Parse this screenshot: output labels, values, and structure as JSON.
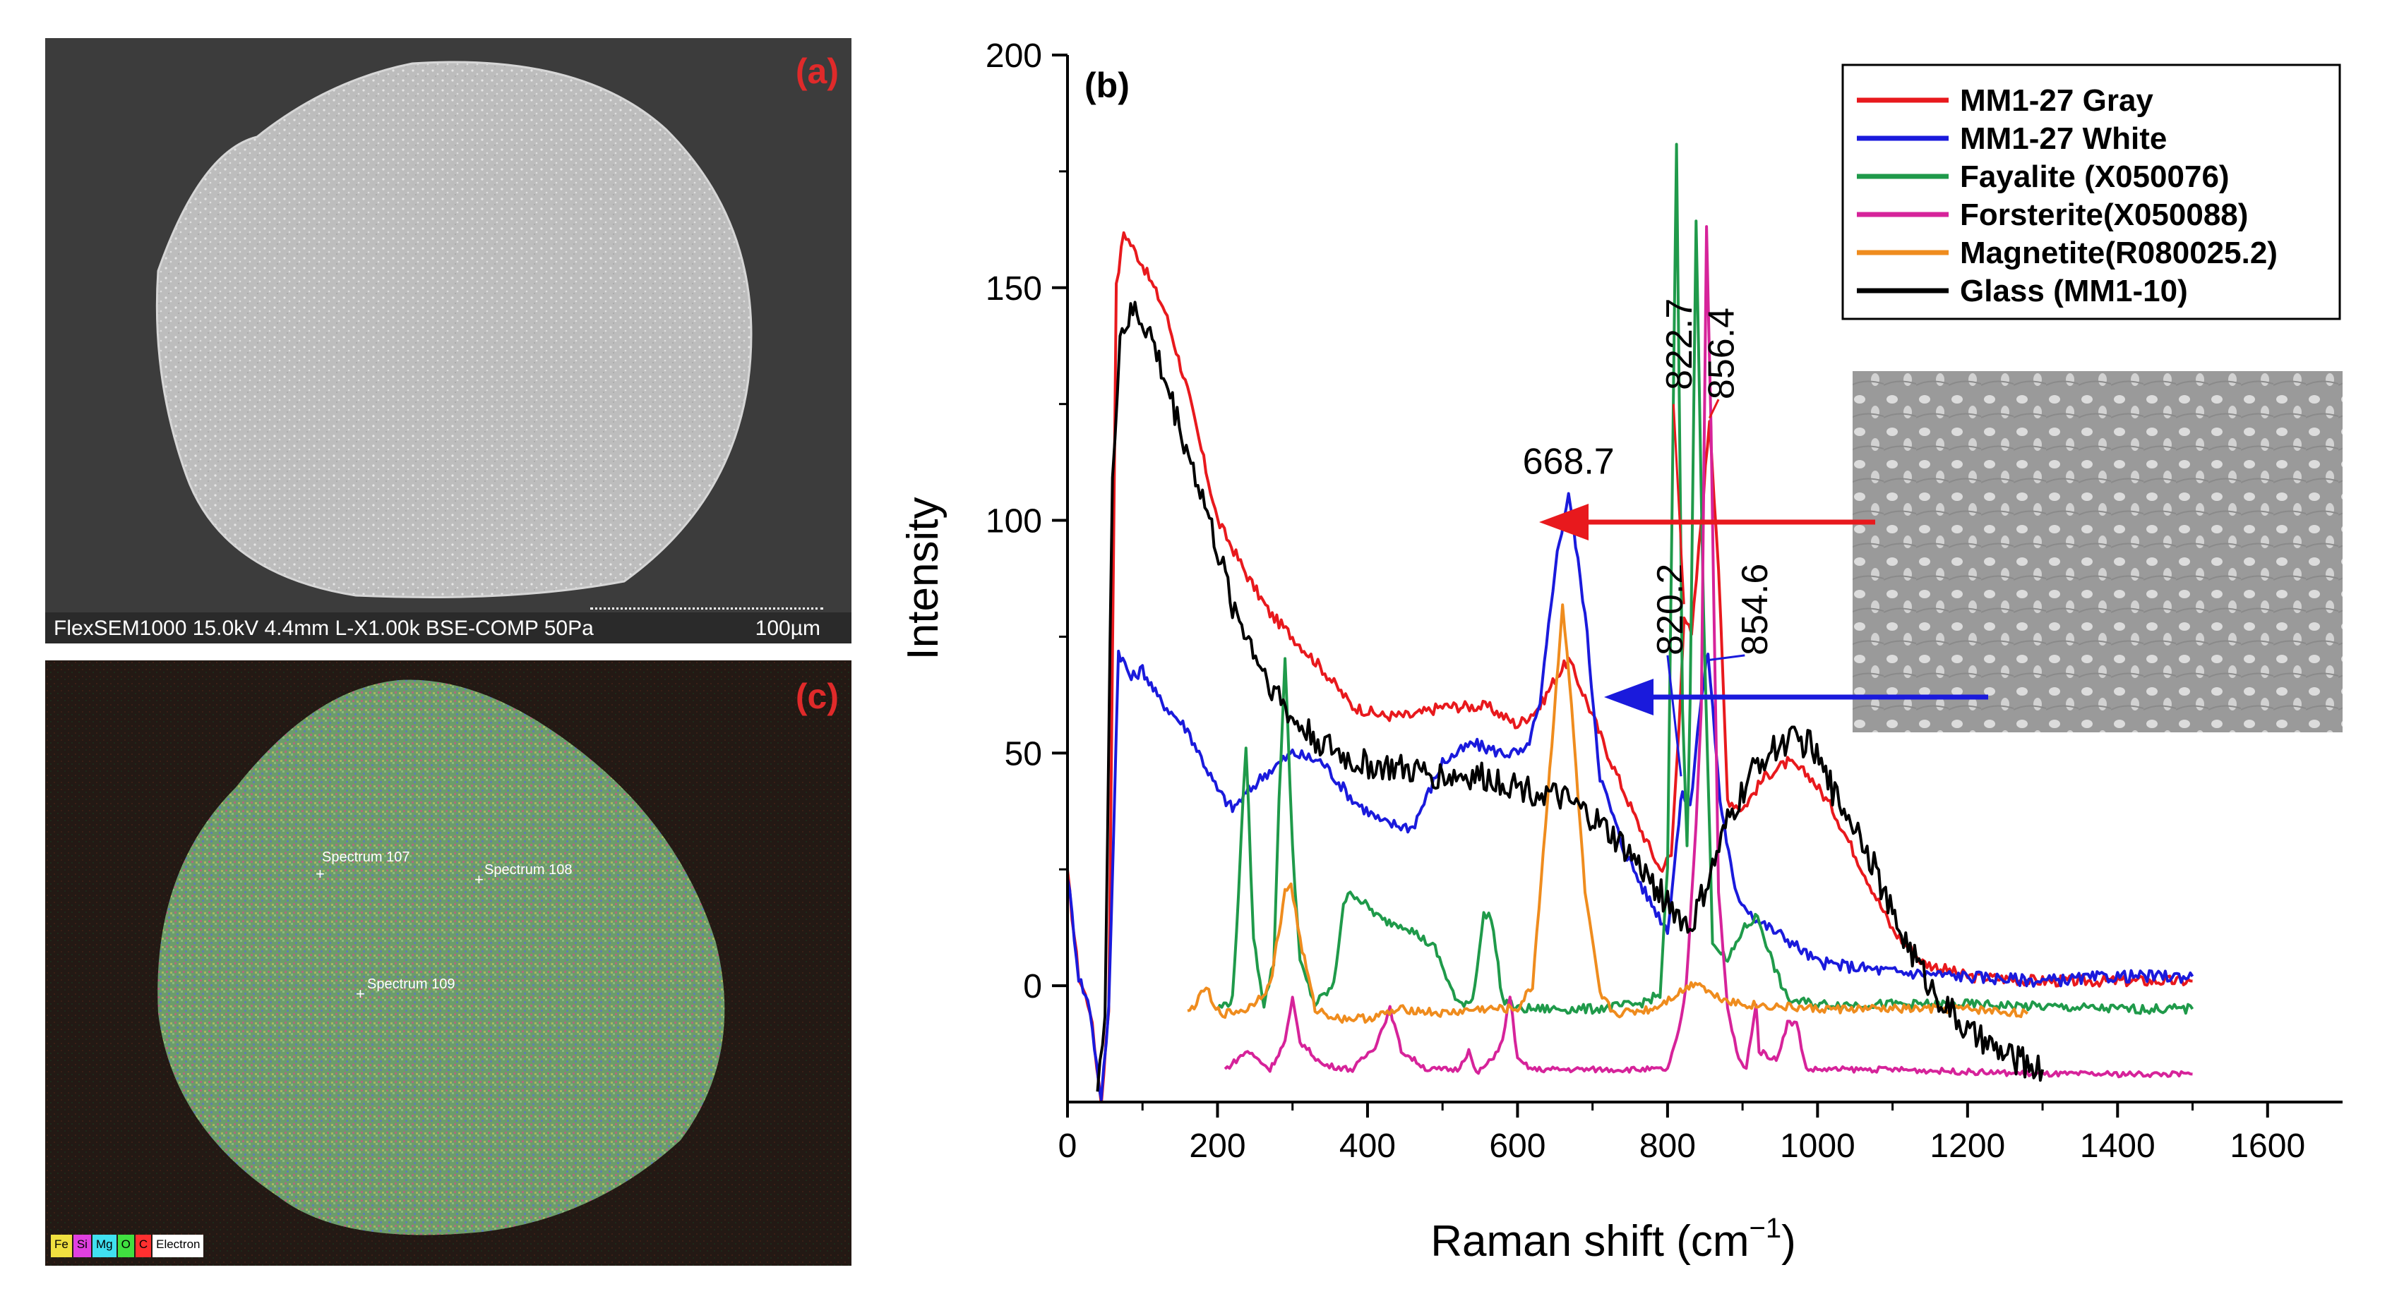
{
  "panel_a": {
    "letter": "(a)",
    "caption": "FlexSEM1000 15.0kV 4.4mm L-X1.00k BSE-COMP 50Pa",
    "scale_label": "100µm"
  },
  "panel_c": {
    "letter": "(c)",
    "spectra": [
      "Spectrum 107",
      "Spectrum 108",
      "Spectrum 109"
    ],
    "elements": [
      {
        "label": "Fe",
        "color": "#f0e040"
      },
      {
        "label": "Si",
        "color": "#e040e0"
      },
      {
        "label": "Mg",
        "color": "#40e0f0"
      },
      {
        "label": "O",
        "color": "#40e040"
      },
      {
        "label": "C",
        "color": "#ff3030"
      },
      {
        "label": "Electron",
        "color": "#ffffff"
      }
    ]
  },
  "chart_data": {
    "type": "line",
    "panel_letter": "(b)",
    "xlabel": "Raman shift (cm",
    "xlabel_sup": "−1",
    "xlabel_end": ")",
    "ylabel": "Intensity",
    "xlim": [
      0,
      1700
    ],
    "ylim": [
      -25,
      200
    ],
    "x_ticks": [
      "0",
      "200",
      "400",
      "600",
      "800",
      "1000",
      "1200",
      "1400",
      "1600"
    ],
    "y_ticks": [
      "0",
      "50",
      "100",
      "150",
      "200"
    ],
    "legend": [
      {
        "name": "MM1-27 Gray",
        "color": "#e8191d"
      },
      {
        "name": "MM1-27 White",
        "color": "#1a1adc"
      },
      {
        "name": "Fayalite (X050076)",
        "color": "#1f9a4a"
      },
      {
        "name": "Forsterite(X050088)",
        "color": "#d6239a"
      },
      {
        "name": "Magnetite(R080025.2)",
        "color": "#ef8c1e"
      },
      {
        "name": "Glass (MM1-10)",
        "color": "#000000"
      }
    ],
    "series": [
      {
        "name": "MM1-27 Gray",
        "color": "#e8191d",
        "noise": 1.2,
        "points": [
          [
            0,
            24
          ],
          [
            15,
            2
          ],
          [
            30,
            -5
          ],
          [
            45,
            -25
          ],
          [
            55,
            -5
          ],
          [
            65,
            150
          ],
          [
            75,
            162
          ],
          [
            100,
            155
          ],
          [
            130,
            145
          ],
          [
            160,
            128
          ],
          [
            200,
            100
          ],
          [
            240,
            88
          ],
          [
            270,
            80
          ],
          [
            300,
            75
          ],
          [
            340,
            68
          ],
          [
            380,
            60
          ],
          [
            420,
            58
          ],
          [
            460,
            58
          ],
          [
            500,
            60
          ],
          [
            560,
            60
          ],
          [
            600,
            56
          ],
          [
            630,
            60
          ],
          [
            650,
            66
          ],
          [
            668,
            70
          ],
          [
            690,
            62
          ],
          [
            720,
            50
          ],
          [
            760,
            35
          ],
          [
            790,
            25
          ],
          [
            805,
            28
          ],
          [
            815,
            55
          ],
          [
            822,
            80
          ],
          [
            832,
            75
          ],
          [
            845,
            100
          ],
          [
            856,
            122
          ],
          [
            868,
            90
          ],
          [
            880,
            40
          ],
          [
            900,
            38
          ],
          [
            930,
            45
          ],
          [
            960,
            48
          ],
          [
            990,
            45
          ],
          [
            1020,
            38
          ],
          [
            1060,
            25
          ],
          [
            1100,
            12
          ],
          [
            1140,
            5
          ],
          [
            1200,
            2
          ],
          [
            1300,
            1
          ],
          [
            1400,
            1
          ],
          [
            1500,
            1
          ]
        ]
      },
      {
        "name": "MM1-27 White",
        "color": "#1a1adc",
        "noise": 1.3,
        "points": [
          [
            0,
            24
          ],
          [
            15,
            2
          ],
          [
            30,
            -5
          ],
          [
            45,
            -25
          ],
          [
            55,
            -5
          ],
          [
            68,
            72
          ],
          [
            85,
            66
          ],
          [
            100,
            68
          ],
          [
            120,
            62
          ],
          [
            160,
            55
          ],
          [
            200,
            42
          ],
          [
            220,
            38
          ],
          [
            260,
            45
          ],
          [
            300,
            50
          ],
          [
            340,
            48
          ],
          [
            380,
            40
          ],
          [
            420,
            35
          ],
          [
            460,
            34
          ],
          [
            500,
            48
          ],
          [
            540,
            52
          ],
          [
            580,
            50
          ],
          [
            610,
            50
          ],
          [
            630,
            60
          ],
          [
            650,
            90
          ],
          [
            668,
            106
          ],
          [
            690,
            80
          ],
          [
            710,
            45
          ],
          [
            740,
            30
          ],
          [
            770,
            20
          ],
          [
            800,
            12
          ],
          [
            815,
            35
          ],
          [
            820,
            42
          ],
          [
            830,
            38
          ],
          [
            840,
            55
          ],
          [
            854,
            72
          ],
          [
            870,
            40
          ],
          [
            890,
            20
          ],
          [
            920,
            14
          ],
          [
            960,
            10
          ],
          [
            1000,
            5
          ],
          [
            1100,
            3
          ],
          [
            1200,
            2
          ],
          [
            1300,
            1
          ],
          [
            1400,
            2
          ],
          [
            1500,
            2
          ]
        ]
      },
      {
        "name": "Fayalite (X050076)",
        "color": "#1f9a4a",
        "noise": 1.0,
        "points": [
          [
            200,
            -5
          ],
          [
            220,
            -3
          ],
          [
            228,
            20
          ],
          [
            238,
            52
          ],
          [
            248,
            10
          ],
          [
            262,
            -4
          ],
          [
            275,
            5
          ],
          [
            282,
            40
          ],
          [
            290,
            70
          ],
          [
            300,
            30
          ],
          [
            310,
            5
          ],
          [
            330,
            -4
          ],
          [
            355,
            0
          ],
          [
            368,
            18
          ],
          [
            380,
            20
          ],
          [
            400,
            17
          ],
          [
            420,
            14
          ],
          [
            450,
            13
          ],
          [
            490,
            8
          ],
          [
            520,
            -4
          ],
          [
            540,
            -3
          ],
          [
            555,
            15
          ],
          [
            565,
            15
          ],
          [
            580,
            -3
          ],
          [
            600,
            -5
          ],
          [
            700,
            -5
          ],
          [
            760,
            -4
          ],
          [
            790,
            -2
          ],
          [
            800,
            25
          ],
          [
            812,
            180
          ],
          [
            820,
            60
          ],
          [
            826,
            30
          ],
          [
            830,
            60
          ],
          [
            838,
            165
          ],
          [
            848,
            80
          ],
          [
            860,
            10
          ],
          [
            880,
            5
          ],
          [
            900,
            12
          ],
          [
            920,
            15
          ],
          [
            940,
            5
          ],
          [
            960,
            -3
          ],
          [
            1000,
            -4
          ],
          [
            1200,
            -4
          ],
          [
            1400,
            -5
          ],
          [
            1500,
            -5
          ]
        ]
      },
      {
        "name": "Forsterite(X050088)",
        "color": "#d6239a",
        "noise": 0.6,
        "points": [
          [
            210,
            -18
          ],
          [
            240,
            -14
          ],
          [
            270,
            -18
          ],
          [
            290,
            -12
          ],
          [
            300,
            -3
          ],
          [
            310,
            -12
          ],
          [
            340,
            -17
          ],
          [
            380,
            -18
          ],
          [
            410,
            -13
          ],
          [
            430,
            -5
          ],
          [
            445,
            -14
          ],
          [
            480,
            -18
          ],
          [
            520,
            -18
          ],
          [
            535,
            -14
          ],
          [
            545,
            -19
          ],
          [
            565,
            -16
          ],
          [
            580,
            -12
          ],
          [
            590,
            -2
          ],
          [
            600,
            -16
          ],
          [
            620,
            -18
          ],
          [
            800,
            -18
          ],
          [
            815,
            -10
          ],
          [
            825,
            0
          ],
          [
            838,
            35
          ],
          [
            845,
            60
          ],
          [
            852,
            163
          ],
          [
            858,
            120
          ],
          [
            868,
            20
          ],
          [
            880,
            -5
          ],
          [
            895,
            -16
          ],
          [
            905,
            -18
          ],
          [
            912,
            -10
          ],
          [
            918,
            -4
          ],
          [
            922,
            -14
          ],
          [
            945,
            -16
          ],
          [
            960,
            -8
          ],
          [
            972,
            -8
          ],
          [
            985,
            -18
          ],
          [
            1100,
            -18
          ],
          [
            1300,
            -19
          ],
          [
            1500,
            -19
          ]
        ]
      },
      {
        "name": "Magnetite(R080025.2)",
        "color": "#ef8c1e",
        "noise": 0.9,
        "points": [
          [
            160,
            -6
          ],
          [
            175,
            -3
          ],
          [
            185,
            0
          ],
          [
            195,
            -5
          ],
          [
            210,
            -6
          ],
          [
            240,
            -5
          ],
          [
            270,
            0
          ],
          [
            290,
            20
          ],
          [
            298,
            22
          ],
          [
            310,
            10
          ],
          [
            330,
            -5
          ],
          [
            360,
            -7
          ],
          [
            400,
            -7
          ],
          [
            450,
            -5
          ],
          [
            500,
            -6
          ],
          [
            550,
            -5
          ],
          [
            600,
            -5
          ],
          [
            620,
            0
          ],
          [
            640,
            40
          ],
          [
            660,
            82
          ],
          [
            672,
            60
          ],
          [
            690,
            20
          ],
          [
            710,
            -2
          ],
          [
            730,
            -6
          ],
          [
            780,
            -5
          ],
          [
            820,
            -1
          ],
          [
            840,
            1
          ],
          [
            860,
            -2
          ],
          [
            900,
            -4
          ],
          [
            1000,
            -5
          ],
          [
            1100,
            -5
          ],
          [
            1200,
            -5
          ],
          [
            1280,
            -6
          ]
        ]
      },
      {
        "name": "Glass (MM1-10)",
        "color": "#000000",
        "noise": 3.2,
        "points": [
          [
            40,
            -20
          ],
          [
            50,
            -8
          ],
          [
            60,
            110
          ],
          [
            70,
            140
          ],
          [
            90,
            145
          ],
          [
            110,
            140
          ],
          [
            140,
            125
          ],
          [
            180,
            105
          ],
          [
            220,
            82
          ],
          [
            260,
            68
          ],
          [
            300,
            57
          ],
          [
            340,
            52
          ],
          [
            380,
            48
          ],
          [
            420,
            47
          ],
          [
            460,
            46
          ],
          [
            500,
            45
          ],
          [
            540,
            45
          ],
          [
            580,
            44
          ],
          [
            620,
            42
          ],
          [
            660,
            40
          ],
          [
            700,
            36
          ],
          [
            740,
            30
          ],
          [
            780,
            22
          ],
          [
            800,
            18
          ],
          [
            830,
            12
          ],
          [
            860,
            25
          ],
          [
            880,
            35
          ],
          [
            920,
            48
          ],
          [
            960,
            53
          ],
          [
            990,
            52
          ],
          [
            1020,
            42
          ],
          [
            1060,
            32
          ],
          [
            1100,
            15
          ],
          [
            1150,
            0
          ],
          [
            1200,
            -10
          ],
          [
            1250,
            -15
          ],
          [
            1300,
            -18
          ]
        ]
      }
    ],
    "annotations": [
      {
        "label": "668.7",
        "color": "#1a1adc",
        "rotate": false,
        "ax": 668,
        "ay": 110
      },
      {
        "label": "820.2",
        "color": "#1a1adc",
        "rotate": true,
        "ax": 805,
        "ay": 71
      },
      {
        "label": "854.6",
        "color": "#1a1adc",
        "rotate": true,
        "ax": 918,
        "ay": 71
      },
      {
        "label": "822.7",
        "color": "#e8191d",
        "rotate": true,
        "ax": 817,
        "ay": 128
      },
      {
        "label": "856.4",
        "color": "#e8191d",
        "rotate": true,
        "ax": 873,
        "ay": 126
      }
    ],
    "inset_caption": ""
  }
}
